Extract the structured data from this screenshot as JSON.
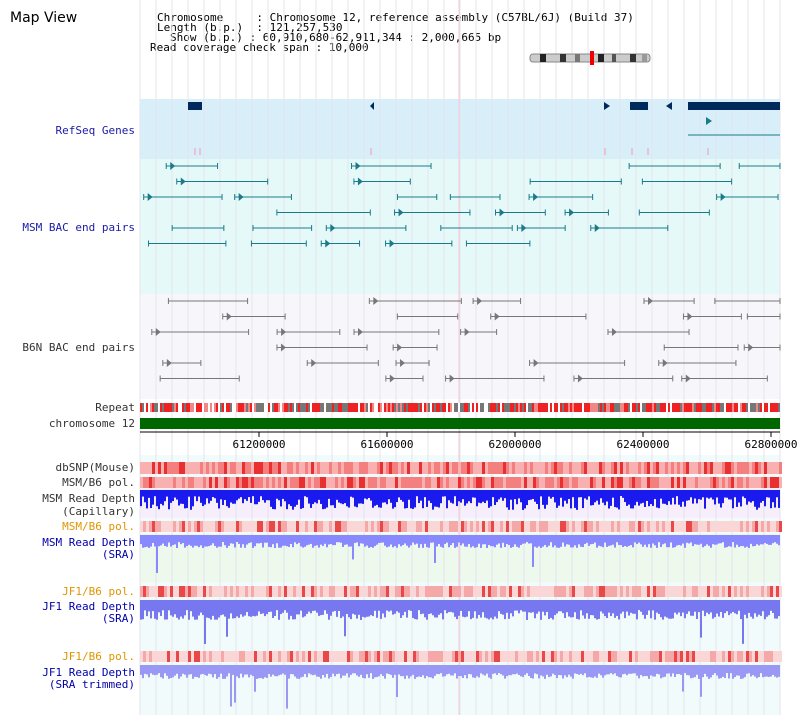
{
  "page": {
    "title": "Map View"
  },
  "info": {
    "chromosome_label": "Chromosome",
    "chromosome_value": "Chromosome 12, reference assembly (C57BL/6J) (Build 37)",
    "length_label": "Length (b.p.)",
    "length_value": "121,257,530",
    "show_label": "Show (b.p.)",
    "show_value": "60,910,680-62,911,344 : 2,000,665 bp",
    "coverage_label": "Read coverage check span",
    "coverage_value": "10,000"
  },
  "tracks": {
    "refseq": "RefSeq Genes",
    "msm_bac": "MSM BAC end pairs",
    "b6n_bac": "B6N BAC end pairs",
    "repeat": "Repeat",
    "chromosome": "chromosome 12",
    "dbsnp": "dbSNP(Mouse)",
    "msm_b6_pol_1": "MSM/B6 pol.",
    "msm_depth_cap_1": "MSM Read Depth",
    "msm_depth_cap_2": "(Capillary)",
    "msm_b6_pol_2": "MSM/B6 pol.",
    "msm_depth_sra_1": "MSM Read Depth",
    "msm_depth_sra_2": "(SRA)",
    "jf1_b6_pol_1": "JF1/B6 pol.",
    "jf1_depth_sra_1": "JF1 Read Depth",
    "jf1_depth_sra_2": "(SRA)",
    "jf1_b6_pol_2": "JF1/B6 pol.",
    "jf1_depth_trim_1": "JF1 Read Depth",
    "jf1_depth_trim_2": "(SRA trimmed)"
  },
  "axis": {
    "ticks": [
      "61200000",
      "61600000",
      "62000000",
      "62400000",
      "62800000"
    ]
  },
  "colors": {
    "refseq_bg": "#d8effa",
    "msm_bg": "#e6f9f9",
    "b6n_bg": "#f7f7fb",
    "chromosome_bar": "#006600",
    "msm_line": "#1a7a8a",
    "b6n_line": "#777777",
    "gene": "#002a5c",
    "depth_cap": "#1a1aee",
    "depth_sra": "#8888ff"
  }
}
